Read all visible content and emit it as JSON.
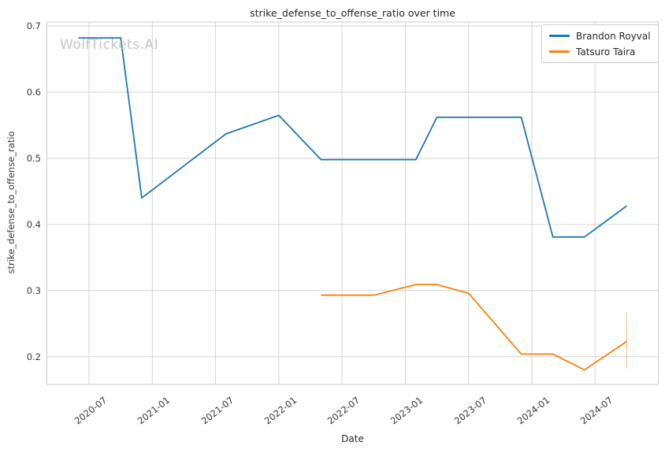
{
  "watermark": "WolfTickets.AI",
  "colors": {
    "blue": "#1f77b4",
    "orange": "#ff7f0e",
    "grid": "#d6d6d6",
    "spine": "#cccccc",
    "watermark_gray": "#c6c6c6"
  },
  "chart_data": {
    "type": "line",
    "title": "strike_defense_to_offense_ratio over time",
    "xlabel": "Date",
    "ylabel": "strike_defense_to_offense_ratio",
    "grid": true,
    "legend_position": "upper right",
    "x_ticks": [
      "2020-07",
      "2021-01",
      "2021-07",
      "2022-01",
      "2022-07",
      "2023-01",
      "2023-07",
      "2024-01",
      "2024-07"
    ],
    "y_ticks": [
      0.2,
      0.3,
      0.4,
      0.5,
      0.6,
      0.7
    ],
    "x_range": [
      "2020-03",
      "2025-01"
    ],
    "y_range": [
      0.158,
      0.706
    ],
    "series": [
      {
        "name": "Brandon Royval",
        "color": "#1f77b4",
        "points": [
          {
            "date": "2020-06",
            "value": 0.682
          },
          {
            "date": "2020-10",
            "value": 0.682
          },
          {
            "date": "2020-12",
            "value": 0.44
          },
          {
            "date": "2021-08",
            "value": 0.537
          },
          {
            "date": "2022-01",
            "value": 0.565
          },
          {
            "date": "2022-05",
            "value": 0.498
          },
          {
            "date": "2023-02",
            "value": 0.498
          },
          {
            "date": "2023-04",
            "value": 0.562
          },
          {
            "date": "2023-12",
            "value": 0.562
          },
          {
            "date": "2024-03",
            "value": 0.381
          },
          {
            "date": "2024-06",
            "value": 0.381
          },
          {
            "date": "2024-10",
            "value": 0.428
          }
        ]
      },
      {
        "name": "Tatsuro Taira",
        "color": "#ff7f0e",
        "points": [
          {
            "date": "2022-05",
            "value": 0.293
          },
          {
            "date": "2022-10",
            "value": 0.293
          },
          {
            "date": "2023-02",
            "value": 0.309
          },
          {
            "date": "2023-04",
            "value": 0.309
          },
          {
            "date": "2023-07",
            "value": 0.296
          },
          {
            "date": "2023-12",
            "value": 0.204
          },
          {
            "date": "2024-03",
            "value": 0.204
          },
          {
            "date": "2024-06",
            "value": 0.18
          },
          {
            "date": "2024-10",
            "value": 0.223
          }
        ],
        "error_bar": {
          "date": "2024-10",
          "low": 0.182,
          "high": 0.267
        }
      }
    ]
  }
}
